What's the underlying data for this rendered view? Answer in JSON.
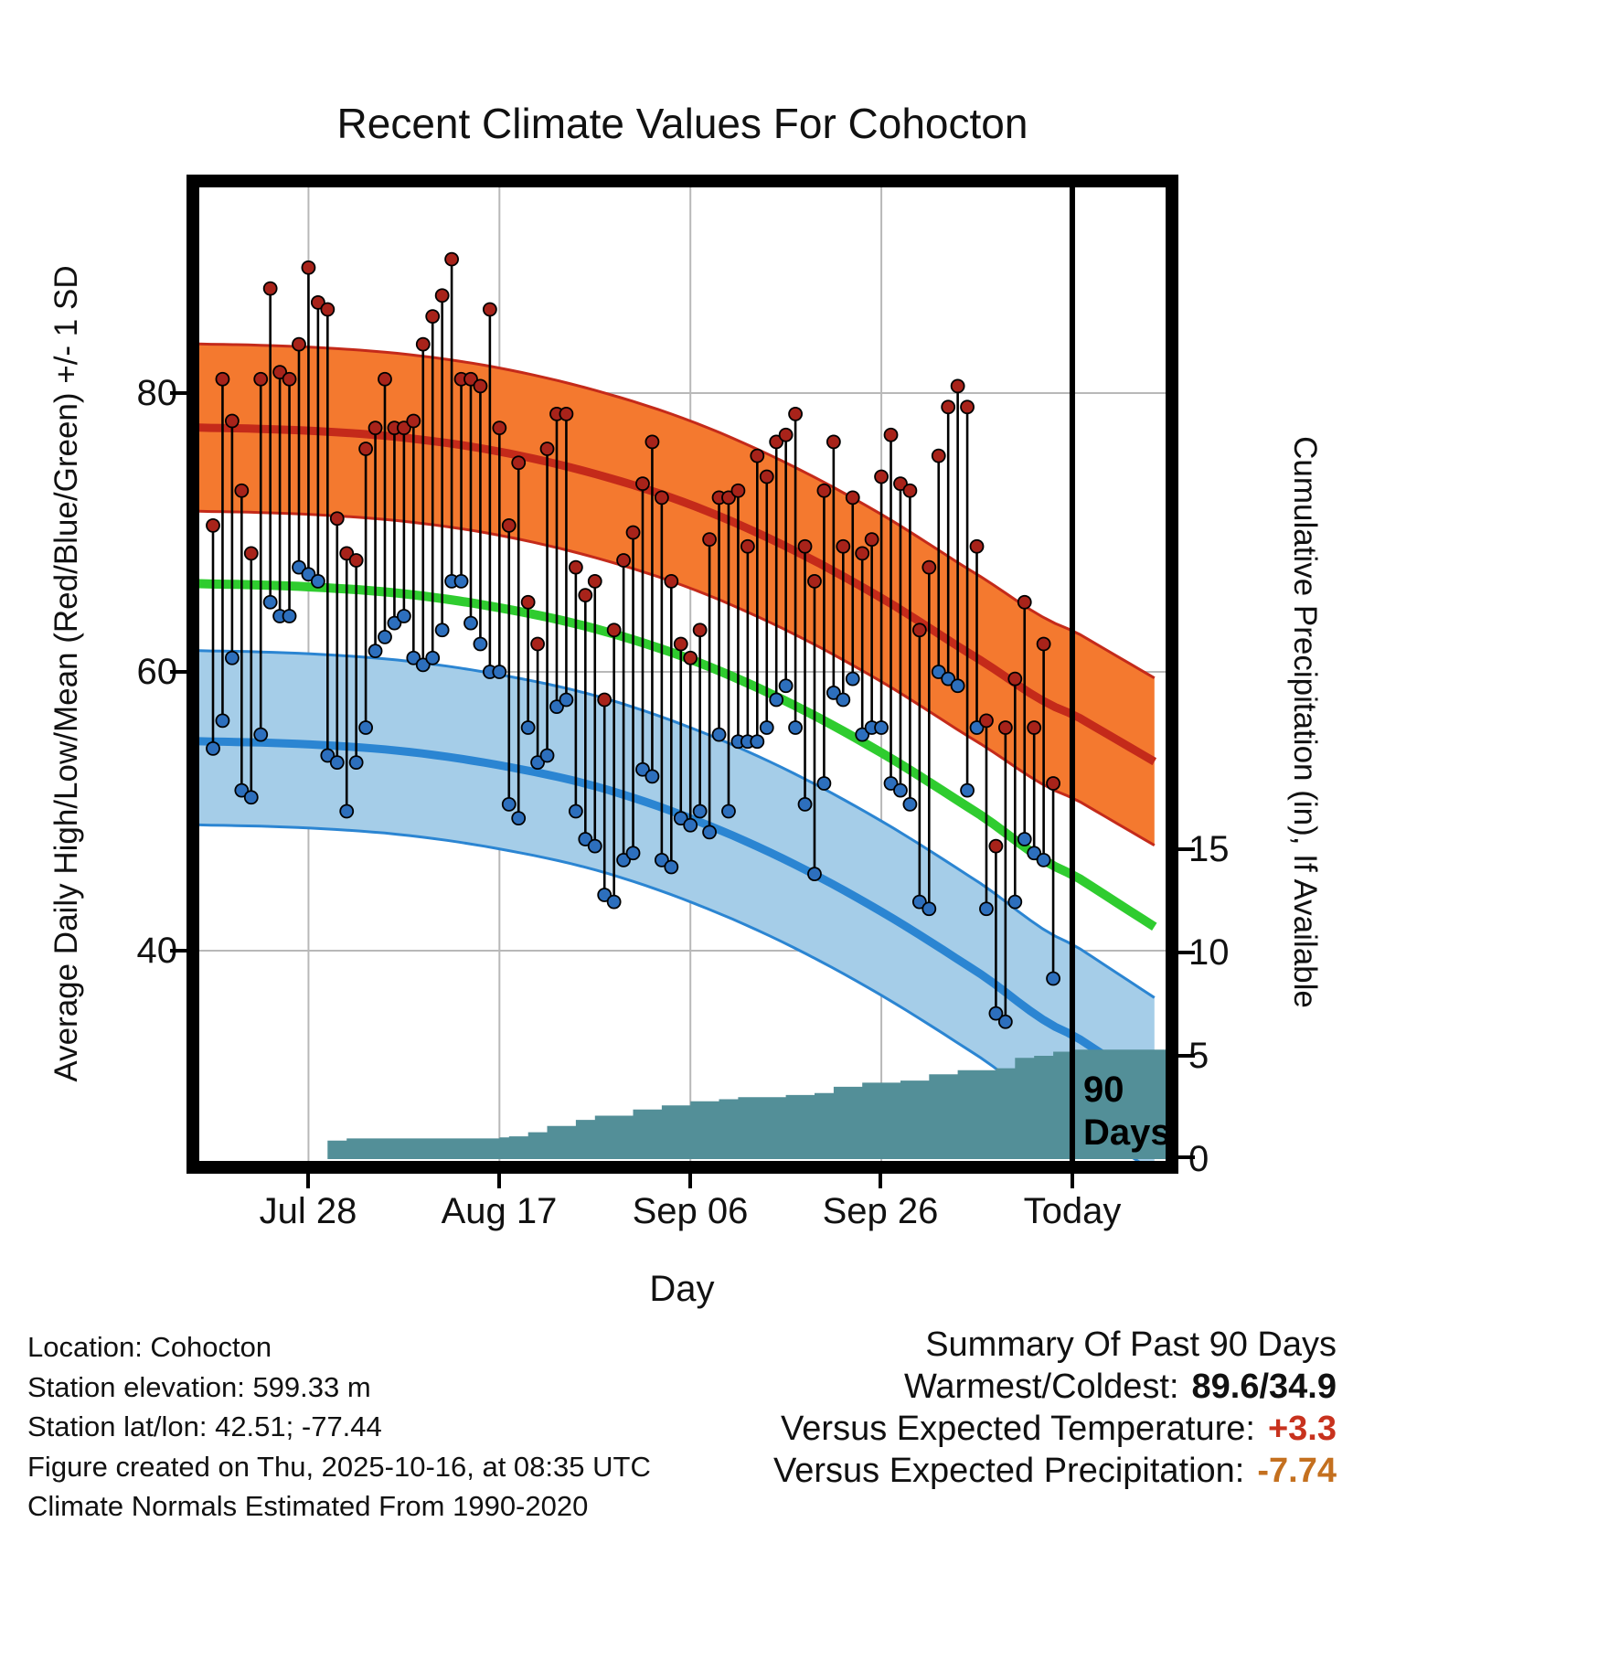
{
  "title": "Recent Climate Values For Cohocton",
  "chart_data": {
    "type": "line",
    "title": "Recent Climate Values For Cohocton",
    "xlabel": "Day",
    "ylabel_left": "Average Daily High/Low/Mean (Red/Blue/Green) +/- 1 SD",
    "ylabel_right": "Cumulative Precipitation (in), If Available",
    "x_ticks": [
      {
        "day": 10,
        "label": "Jul 28"
      },
      {
        "day": 30,
        "label": "Aug 17"
      },
      {
        "day": 50,
        "label": "Sep 06"
      },
      {
        "day": 70,
        "label": "Sep 26"
      },
      {
        "day": 90,
        "label": "Today"
      }
    ],
    "temp_ticks": [
      {
        "value": 80,
        "label": "80"
      },
      {
        "value": 60,
        "label": "60"
      },
      {
        "value": 40,
        "label": "40"
      }
    ],
    "precip_ticks": [
      {
        "value": 15,
        "label": "15"
      },
      {
        "value": 10,
        "label": "10"
      },
      {
        "value": 5,
        "label": "5"
      },
      {
        "value": 0,
        "label": "0"
      }
    ],
    "temp_axis_range": [
      25.2,
      94.8
    ],
    "precip_axis_range": [
      0,
      47
    ],
    "grid": true,
    "today_day": 90,
    "today_annotation": [
      "90",
      "Days"
    ],
    "normals": {
      "days": [
        0,
        10,
        20,
        30,
        40,
        50,
        60,
        70,
        80,
        90
      ],
      "high_plus_sd": [
        83.5,
        83.3,
        82.8,
        81.8,
        80.2,
        78.0,
        75.0,
        71.3,
        67.0,
        63.0
      ],
      "high_mean": [
        77.5,
        77.3,
        76.8,
        75.8,
        74.2,
        72.0,
        69.0,
        65.3,
        61.0,
        57.0
      ],
      "high_minus_sd": [
        71.5,
        71.3,
        70.8,
        69.8,
        68.2,
        66.0,
        63.0,
        59.3,
        55.0,
        51.0
      ],
      "mean": [
        66.3,
        66.1,
        65.6,
        64.6,
        63.1,
        60.9,
        57.9,
        54.2,
        49.9,
        45.5
      ],
      "low_plus_sd": [
        61.5,
        61.3,
        60.8,
        59.8,
        58.3,
        56.0,
        53.0,
        49.3,
        45.0,
        40.5
      ],
      "low_mean": [
        55.0,
        54.8,
        54.3,
        53.3,
        51.8,
        49.5,
        46.5,
        42.8,
        38.5,
        34.0
      ],
      "low_minus_sd": [
        49.0,
        48.8,
        48.3,
        47.3,
        45.8,
        43.5,
        40.5,
        36.8,
        32.5,
        28.0
      ]
    },
    "daily": {
      "day_of_first_point": 0,
      "high": [
        70.5,
        81,
        78,
        73,
        68.5,
        81,
        87.5,
        81.5,
        81,
        83.5,
        89,
        86.5,
        86,
        71,
        68.5,
        68,
        76,
        77.5,
        81,
        77.5,
        77.5,
        78,
        83.5,
        85.5,
        87,
        89.6,
        81,
        81,
        80.5,
        86,
        77.5,
        70.5,
        75,
        65,
        62,
        76,
        78.5,
        78.5,
        67.5,
        65.5,
        66.5,
        58,
        63,
        68,
        70,
        73.5,
        76.5,
        72.5,
        66.5,
        62,
        61,
        63,
        69.5,
        72.5,
        72.5,
        73,
        69,
        75.5,
        74,
        76.5,
        77,
        78.5,
        69,
        66.5,
        73,
        76.5,
        69,
        72.5,
        68.5,
        69.5,
        74,
        77,
        73.5,
        73,
        63,
        67.5,
        75.5,
        79,
        80.5,
        79,
        69,
        56.5,
        47.5,
        56,
        59.5,
        65,
        56,
        62,
        52
      ],
      "low": [
        54.5,
        56.5,
        61,
        51.5,
        51,
        55.5,
        65,
        64,
        64,
        67.5,
        67,
        66.5,
        54,
        53.5,
        50,
        53.5,
        56,
        61.5,
        62.5,
        63.5,
        64,
        61,
        60.5,
        61,
        63,
        66.5,
        66.5,
        63.5,
        62,
        60,
        60,
        50.5,
        49.5,
        56,
        53.5,
        54,
        57.5,
        58,
        50,
        48,
        47.5,
        44,
        43.5,
        46.5,
        47,
        53,
        52.5,
        46.5,
        46,
        49.5,
        49,
        50,
        48.5,
        55.5,
        50,
        55,
        55,
        55,
        56,
        58,
        59,
        56,
        50.5,
        45.5,
        52,
        58.5,
        58,
        59.5,
        55.5,
        56,
        56,
        52,
        51.5,
        50.5,
        43.5,
        43,
        60,
        59.5,
        59,
        51.5,
        56,
        43,
        35.5,
        34.9,
        43.5,
        48,
        47,
        46.5,
        38
      ]
    },
    "precip_cumulative": {
      "steps": [
        [
          0,
          0
        ],
        [
          11,
          0
        ],
        [
          12,
          0.9
        ],
        [
          14,
          1.0
        ],
        [
          30,
          1.05
        ],
        [
          31,
          1.1
        ],
        [
          33,
          1.3
        ],
        [
          35,
          1.6
        ],
        [
          38,
          1.9
        ],
        [
          40,
          2.1
        ],
        [
          44,
          2.4
        ],
        [
          47,
          2.6
        ],
        [
          50,
          2.8
        ],
        [
          53,
          2.9
        ],
        [
          55,
          3.0
        ],
        [
          60,
          3.1
        ],
        [
          63,
          3.2
        ],
        [
          65,
          3.5
        ],
        [
          68,
          3.7
        ],
        [
          72,
          3.8
        ],
        [
          75,
          4.1
        ],
        [
          78,
          4.3
        ],
        [
          82,
          4.4
        ],
        [
          84,
          4.9
        ],
        [
          86,
          5.0
        ],
        [
          88,
          5.2
        ],
        [
          90,
          5.3
        ]
      ]
    },
    "colors": {
      "high_band": "#f4792f",
      "high_line": "#c42a1a",
      "high_dot": "#a8231a",
      "low_band": "#a5cde8",
      "low_line": "#2b85d2",
      "low_dot": "#2d6fbd",
      "mean_line": "#2fcc2f",
      "precip": "#538f98",
      "grid": "#b8b8b8",
      "today_line": "#000000"
    }
  },
  "footer": {
    "location": "Location: Cohocton",
    "elevation": "Station elevation: 599.33 m",
    "latlon": "Station lat/lon: 42.51; -77.44",
    "created": "Figure created on Thu, 2025-10-16, at 08:35 UTC",
    "normals": "Climate Normals Estimated From 1990-2020"
  },
  "summary": {
    "title": "Summary Of Past 90 Days",
    "warmest_coldest_label": "Warmest/Coldest:",
    "warmest_coldest_value": "89.6/34.9",
    "vs_temp_label": "Versus Expected Temperature:",
    "vs_temp_value": "+3.3",
    "vs_precip_label": "Versus Expected Precipitation:",
    "vs_precip_value": "-7.74",
    "temp_anomaly_color": "#c8321e",
    "precip_anomaly_color": "#c4701f"
  }
}
